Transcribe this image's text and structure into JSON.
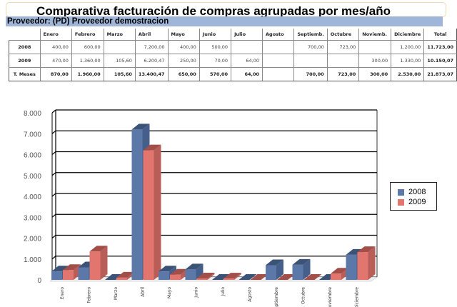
{
  "header": {
    "title": "Comparativa facturación de compras agrupadas por mes/año",
    "provider": "Proveedor: (PD) Proveedor demostracion"
  },
  "table": {
    "columns": [
      "Enero",
      "Febrero",
      "Marzo",
      "Abril",
      "Mayo",
      "Junio",
      "Julio",
      "Agosto",
      "Septiemb.",
      "Octubre",
      "Noviemb.",
      "Diciembre",
      "Total"
    ],
    "rows": [
      {
        "label": "2008",
        "cells": [
          "400,00",
          "600,00",
          "",
          "7.200,00",
          "400,00",
          "500,00",
          "",
          "",
          "700,00",
          "723,00",
          "",
          "1.200,00",
          "11.723,00"
        ]
      },
      {
        "label": "2009",
        "cells": [
          "470,00",
          "1.360,00",
          "105,60",
          "6.200,47",
          "250,00",
          "70,00",
          "64,00",
          "",
          "",
          "",
          "300,00",
          "1.330,00",
          "10.150,07"
        ]
      },
      {
        "label": "T. Meses",
        "cells": [
          "870,00",
          "1.960,00",
          "105,60",
          "13.400,47",
          "650,00",
          "570,00",
          "64,00",
          "",
          "700,00",
          "723,00",
          "300,00",
          "2.530,00",
          "21.873,07"
        ]
      }
    ]
  },
  "colors": {
    "series_2008": "#5b78a8",
    "series_2008_side": "#465f8a",
    "series_2008_top": "#3c5378",
    "series_2009": "#e2766e",
    "series_2009_side": "#b85d57",
    "series_2009_top": "#a24f4a",
    "header_bar": "#9fb6d8"
  },
  "legend": {
    "items": [
      {
        "label": "2008"
      },
      {
        "label": "2009"
      }
    ]
  },
  "chart_data": {
    "type": "bar",
    "title": "",
    "xlabel": "",
    "ylabel": "",
    "categories": [
      "Enero",
      "Febrero",
      "Marzo",
      "Abril",
      "Mayo",
      "Junio",
      "Julio",
      "Agosto",
      "Septiembre",
      "Octubre",
      "Noviembre",
      "Diciembre"
    ],
    "series": [
      {
        "name": "2008",
        "values": [
          400,
          600,
          0,
          7200,
          400,
          500,
          0,
          0,
          700,
          723,
          0,
          1200
        ]
      },
      {
        "name": "2009",
        "values": [
          470,
          1360,
          105.6,
          6200.47,
          250,
          70,
          64,
          0,
          0,
          0,
          300,
          1330
        ]
      }
    ],
    "ylim": [
      0,
      8000
    ],
    "yticks": [
      "0",
      "1.000",
      "2.000",
      "3.000",
      "4.000",
      "5.000",
      "6.000",
      "7.000",
      "8.000"
    ],
    "grid": true,
    "legend_position": "right",
    "style": "3d-clustered-column"
  }
}
